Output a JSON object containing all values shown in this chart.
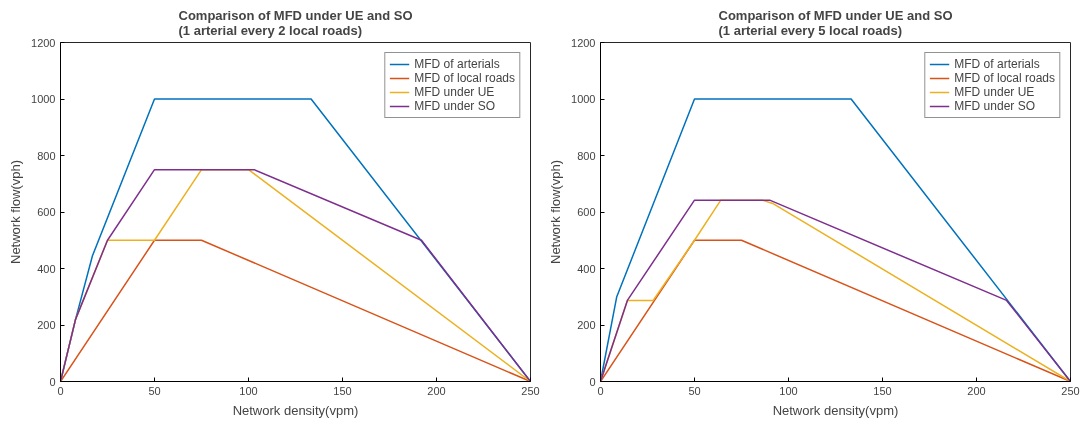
{
  "chart_data": [
    {
      "type": "line",
      "title": "Comparison of MFD under UE and SO\n(1 arterial every 2 local roads)",
      "xlabel": "Network density(vpm)",
      "ylabel": "Network flow(vph)",
      "xlim": [
        0,
        250
      ],
      "ylim": [
        0,
        1200
      ],
      "xticks": [
        0,
        50,
        100,
        150,
        200,
        250
      ],
      "yticks": [
        0,
        200,
        400,
        600,
        800,
        1000,
        1200
      ],
      "grid": false,
      "legend": "top right",
      "marker": "none",
      "line_style": "solid",
      "series": [
        {
          "name": "MFD of arterials",
          "color": "#0072bd",
          "x": [
            0,
            8,
            17,
            50,
            133.3,
            250
          ],
          "values": [
            0,
            220,
            445,
            1000,
            1000,
            0
          ]
        },
        {
          "name": "MFD of local roads",
          "color": "#d95319",
          "x": [
            0,
            50,
            75,
            250
          ],
          "values": [
            0,
            500,
            500,
            0
          ]
        },
        {
          "name": "MFD under UE",
          "color": "#edb120",
          "x": [
            0,
            8,
            25,
            50,
            75,
            100,
            105,
            250
          ],
          "values": [
            0,
            220,
            500,
            500,
            750,
            750,
            725,
            0
          ]
        },
        {
          "name": "MFD under SO",
          "color": "#7e2f8e",
          "x": [
            0,
            8,
            25,
            50,
            103,
            192,
            250
          ],
          "values": [
            0,
            220,
            500,
            750,
            750,
            500,
            0
          ]
        }
      ]
    },
    {
      "type": "line",
      "title": "Comparison of MFD under UE and SO\n(1 arterial every 5 local roads)",
      "xlabel": "Network density(vpm)",
      "ylabel": "Network flow(vph)",
      "xlim": [
        0,
        250
      ],
      "ylim": [
        0,
        1200
      ],
      "xticks": [
        0,
        50,
        100,
        150,
        200,
        250
      ],
      "yticks": [
        0,
        200,
        400,
        600,
        800,
        1000,
        1200
      ],
      "grid": false,
      "legend": "top right",
      "marker": "none",
      "line_style": "solid",
      "series": [
        {
          "name": "MFD of arterials",
          "color": "#0072bd",
          "x": [
            0,
            8.6,
            50,
            133.3,
            250
          ],
          "values": [
            0,
            299,
            1000,
            1000,
            0
          ]
        },
        {
          "name": "MFD of local roads",
          "color": "#d95319",
          "x": [
            0,
            50,
            75,
            250
          ],
          "values": [
            0,
            500,
            500,
            0
          ]
        },
        {
          "name": "MFD under UE",
          "color": "#edb120",
          "x": [
            0,
            14.3,
            28,
            50,
            64,
            86,
            92,
            250
          ],
          "values": [
            0,
            287,
            287,
            500,
            642,
            642,
            629,
            0
          ]
        },
        {
          "name": "MFD under SO",
          "color": "#7e2f8e",
          "x": [
            0,
            14.3,
            50,
            90,
            216,
            250
          ],
          "values": [
            0,
            287,
            642,
            642,
            287,
            0
          ]
        }
      ]
    }
  ]
}
